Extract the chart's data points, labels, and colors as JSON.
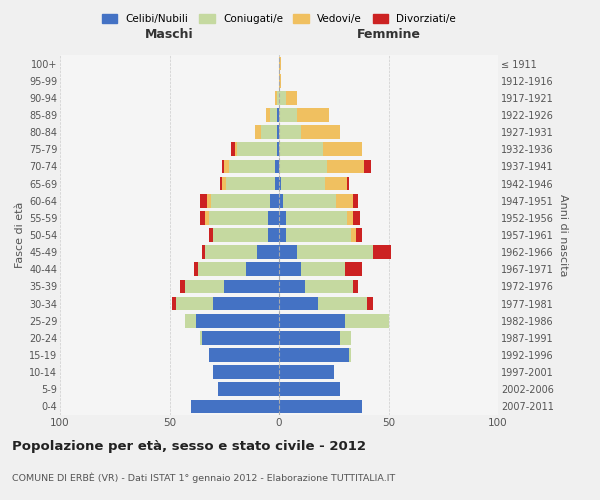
{
  "age_groups": [
    "0-4",
    "5-9",
    "10-14",
    "15-19",
    "20-24",
    "25-29",
    "30-34",
    "35-39",
    "40-44",
    "45-49",
    "50-54",
    "55-59",
    "60-64",
    "65-69",
    "70-74",
    "75-79",
    "80-84",
    "85-89",
    "90-94",
    "95-99",
    "100+"
  ],
  "birth_years": [
    "2007-2011",
    "2002-2006",
    "1997-2001",
    "1992-1996",
    "1987-1991",
    "1982-1986",
    "1977-1981",
    "1972-1976",
    "1967-1971",
    "1962-1966",
    "1957-1961",
    "1952-1956",
    "1947-1951",
    "1942-1946",
    "1937-1941",
    "1932-1936",
    "1927-1931",
    "1922-1926",
    "1917-1921",
    "1912-1916",
    "≤ 1911"
  ],
  "colors": {
    "celibi": "#4472c4",
    "coniugati": "#c5d9a0",
    "vedovi": "#f0c060",
    "divorziati": "#cc2222"
  },
  "males": {
    "celibi": [
      40,
      28,
      30,
      32,
      35,
      38,
      30,
      25,
      15,
      10,
      5,
      5,
      4,
      2,
      2,
      1,
      1,
      1,
      0,
      0,
      0
    ],
    "coniugati": [
      0,
      0,
      0,
      0,
      1,
      5,
      17,
      18,
      22,
      24,
      25,
      27,
      27,
      22,
      21,
      18,
      7,
      3,
      1,
      0,
      0
    ],
    "vedovi": [
      0,
      0,
      0,
      0,
      0,
      0,
      0,
      0,
      0,
      0,
      0,
      2,
      2,
      2,
      2,
      1,
      3,
      2,
      1,
      0,
      0
    ],
    "divorziati": [
      0,
      0,
      0,
      0,
      0,
      0,
      2,
      2,
      2,
      1,
      2,
      2,
      3,
      1,
      1,
      2,
      0,
      0,
      0,
      0,
      0
    ]
  },
  "females": {
    "celibi": [
      38,
      28,
      25,
      32,
      28,
      30,
      18,
      12,
      10,
      8,
      3,
      3,
      2,
      1,
      0,
      0,
      0,
      0,
      0,
      0,
      0
    ],
    "coniugati": [
      0,
      0,
      0,
      1,
      5,
      20,
      22,
      22,
      20,
      35,
      30,
      28,
      24,
      20,
      22,
      20,
      10,
      8,
      3,
      0,
      0
    ],
    "vedovi": [
      0,
      0,
      0,
      0,
      0,
      0,
      0,
      0,
      0,
      0,
      2,
      3,
      8,
      10,
      17,
      18,
      18,
      15,
      5,
      1,
      1
    ],
    "divorziati": [
      0,
      0,
      0,
      0,
      0,
      0,
      3,
      2,
      8,
      8,
      3,
      3,
      2,
      1,
      3,
      0,
      0,
      0,
      0,
      0,
      0
    ]
  },
  "title": "Popolazione per età, sesso e stato civile - 2012",
  "subtitle": "COMUNE DI ERBÈ (VR) - Dati ISTAT 1° gennaio 2012 - Elaborazione TUTTITALIA.IT",
  "xlabel_left": "Maschi",
  "xlabel_right": "Femmine",
  "ylabel_left": "Fasce di età",
  "ylabel_right": "Anni di nascita",
  "xlim": 100,
  "legend_labels": [
    "Celibi/Nubili",
    "Coniugati/e",
    "Vedovi/e",
    "Divorziati/e"
  ],
  "bg_color": "#f0f0f0",
  "plot_bg_color": "#f5f5f5"
}
